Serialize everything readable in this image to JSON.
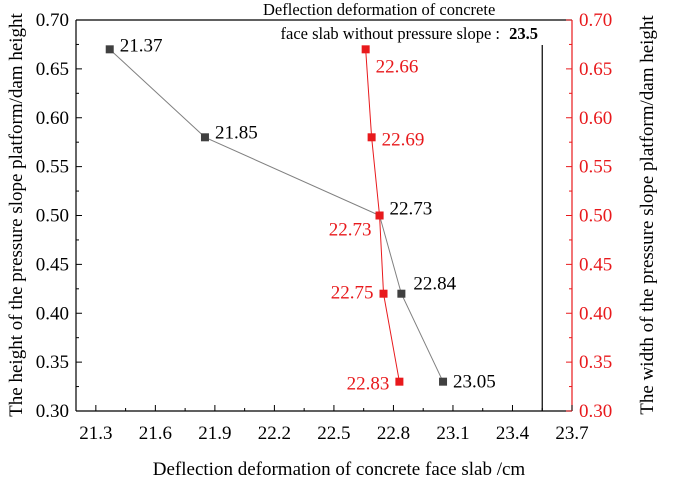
{
  "chart_data": {
    "type": "line",
    "xlabel": "Deflection deformation of concrete face slab /cm",
    "ylabel_left": "The height of the pressure slope platform/dam height",
    "ylabel_right": "The width of the pressure slope platform/dam height",
    "annotation": {
      "text_line1": "Deflection deformation of concrete",
      "text_line2": "face slab without pressure slope :",
      "value": "23.5",
      "x": 23.55
    },
    "xlim": [
      21.2,
      23.7
    ],
    "ylim": [
      0.3,
      0.7
    ],
    "x_ticks": [
      "21.3",
      "21.6",
      "21.9",
      "22.2",
      "22.5",
      "22.8",
      "23.1",
      "23.4",
      "23.7"
    ],
    "y_ticks": [
      "0.30",
      "0.35",
      "0.40",
      "0.45",
      "0.50",
      "0.55",
      "0.60",
      "0.65",
      "0.70"
    ],
    "colors": {
      "height_series": "#404040",
      "width_series": "#e8191c",
      "axis": "#000000"
    },
    "series": [
      {
        "axis": "left",
        "marker": "square",
        "points": [
          {
            "x": 21.37,
            "y": 0.67,
            "label": "21.37"
          },
          {
            "x": 21.85,
            "y": 0.58,
            "label": "21.85"
          },
          {
            "x": 22.73,
            "y": 0.5,
            "label": "22.73"
          },
          {
            "x": 22.84,
            "y": 0.42,
            "label": "22.84"
          },
          {
            "x": 23.05,
            "y": 0.33,
            "label": "23.05"
          }
        ]
      },
      {
        "axis": "right",
        "marker": "square",
        "points": [
          {
            "x": 22.66,
            "y": 0.67,
            "label": "22.66"
          },
          {
            "x": 22.69,
            "y": 0.58,
            "label": "22.69"
          },
          {
            "x": 22.73,
            "y": 0.5,
            "label": "22.73"
          },
          {
            "x": 22.75,
            "y": 0.42,
            "label": "22.75"
          },
          {
            "x": 22.83,
            "y": 0.33,
            "label": "22.83"
          }
        ]
      }
    ]
  }
}
